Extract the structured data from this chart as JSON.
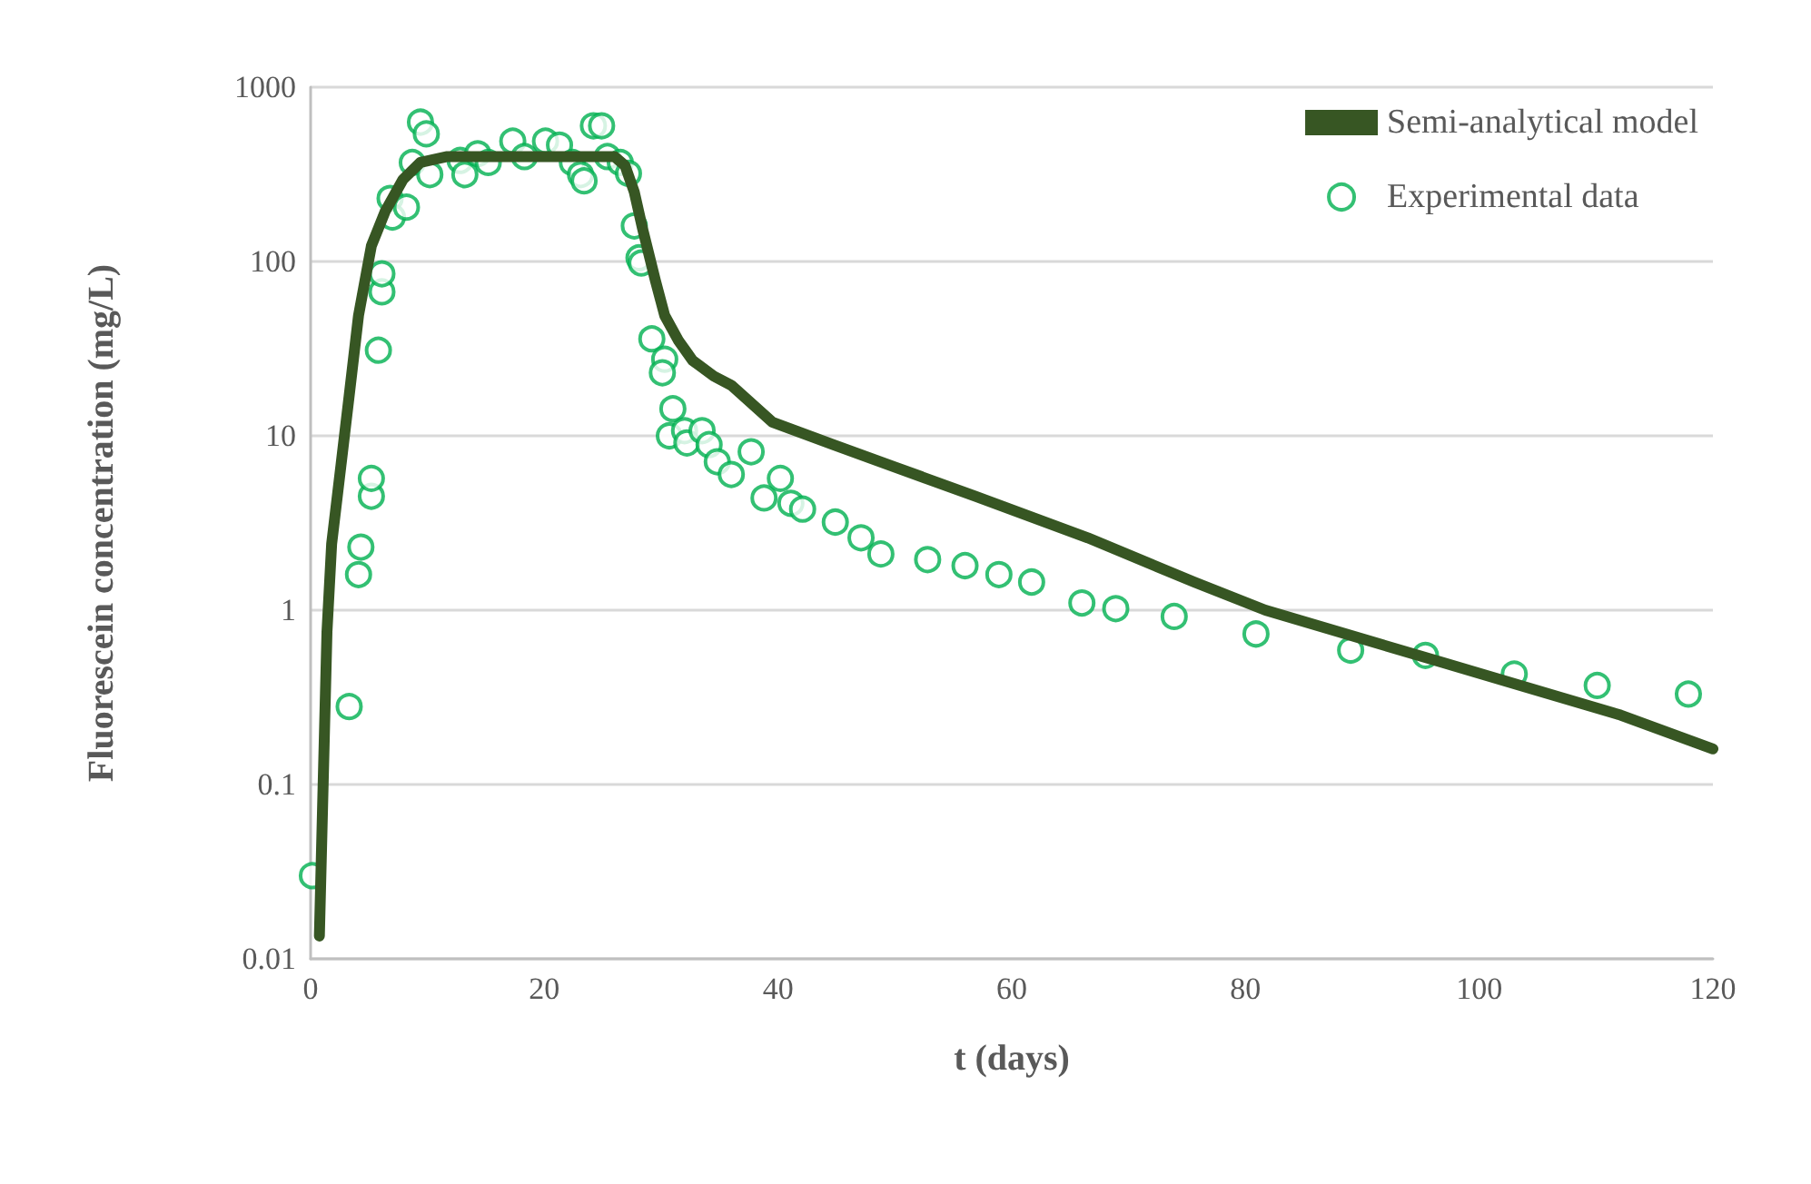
{
  "chart_data": {
    "type": "scatter",
    "xlabel": "t (days)",
    "ylabel": "Fluorescein concentration (mg/L)",
    "log": "y",
    "grid": "y",
    "legend": "top right",
    "xlim": [
      0,
      120
    ],
    "xticks": [
      0,
      20,
      40,
      60,
      80,
      100,
      120
    ],
    "ylim": [
      0.01,
      1000
    ],
    "yticks": [
      0.01,
      0.1,
      1,
      10,
      100,
      1000
    ],
    "series": [
      {
        "name": "Semi-analytical model",
        "type": "line",
        "marker": "none",
        "line_style": "solid",
        "color": "#375623",
        "x": [
          0.75,
          1.06,
          1.4,
          1.8,
          2.6,
          3.3,
          4.1,
          5.2,
          6.4,
          7.9,
          9.4,
          11.7,
          26,
          26.9,
          27.7,
          28.4,
          29.5,
          30.3,
          31.5,
          32.7,
          34.5,
          36,
          39.5,
          44.7,
          56.9,
          66.5,
          75.6,
          81.7,
          96.9,
          112.1,
          120
        ],
        "values": [
          0.0135,
          0.093,
          0.75,
          2.4,
          6.8,
          17,
          49,
          123,
          195,
          295,
          370,
          400,
          400,
          355,
          250,
          155,
          78,
          49,
          35,
          27,
          22,
          19.5,
          12,
          8.9,
          4.5,
          2.6,
          1.45,
          1.0,
          0.5,
          0.25,
          0.16
        ]
      },
      {
        "name": "Experimental data",
        "marker": "circle",
        "color": "#00b050",
        "x": [
          0.15,
          3.3,
          4.1,
          4.3,
          5.2,
          5.2,
          5.8,
          6.1,
          6.1,
          6.8,
          7.0,
          8.2,
          8.7,
          9.4,
          9.9,
          10.2,
          12.8,
          13.2,
          14.3,
          15.2,
          17.3,
          18.3,
          20.1,
          21.3,
          22.4,
          23.1,
          23.4,
          24.2,
          24.9,
          25.4,
          26.5,
          27.2,
          27.7,
          28.1,
          28.3,
          29.2,
          30.3,
          30.1,
          31.0,
          30.7,
          32.0,
          32.2,
          33.5,
          34.1,
          34.8,
          36.0,
          37.7,
          38.8,
          40.2,
          41.1,
          42.1,
          44.9,
          47.1,
          48.8,
          52.8,
          56.0,
          58.9,
          61.7,
          66.0,
          68.9,
          73.9,
          80.9,
          89.0,
          95.4,
          103,
          110.1,
          117.9
        ],
        "values": [
          0.03,
          0.28,
          1.6,
          2.3,
          4.5,
          5.7,
          31,
          67,
          85,
          230,
          180,
          205,
          370,
          630,
          540,
          315,
          380,
          315,
          415,
          370,
          490,
          400,
          490,
          465,
          370,
          315,
          290,
          600,
          600,
          400,
          370,
          320,
          160,
          105,
          98,
          36,
          27.5,
          23,
          14.3,
          10,
          10.7,
          9.1,
          10.7,
          8.9,
          7.1,
          6.0,
          8.1,
          4.4,
          5.7,
          4.1,
          3.8,
          3.2,
          2.6,
          2.1,
          1.95,
          1.8,
          1.6,
          1.45,
          1.1,
          1.02,
          0.92,
          0.73,
          0.59,
          0.55,
          0.43,
          0.37,
          0.33
        ]
      }
    ]
  }
}
